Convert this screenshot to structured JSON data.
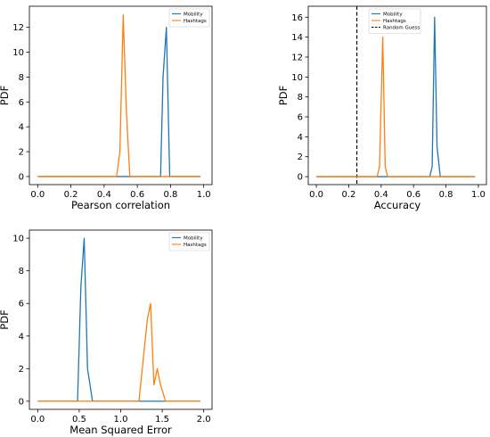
{
  "chart_data": [
    {
      "type": "line",
      "xlabel": "Pearson correlation",
      "ylabel": "PDF",
      "xlim": [
        -0.05,
        1.05
      ],
      "ylim": [
        -0.65,
        13.7
      ],
      "xticks": [
        0.0,
        0.2,
        0.4,
        0.6,
        0.8,
        1.0
      ],
      "xtick_labels": [
        "0.0",
        "0.2",
        "0.4",
        "0.6",
        "0.8",
        "1.0"
      ],
      "yticks": [
        0,
        2,
        4,
        6,
        8,
        10,
        12
      ],
      "ytick_labels": [
        "0",
        "2",
        "4",
        "6",
        "8",
        "10",
        "12"
      ],
      "legend_position": "top-right",
      "series": [
        {
          "name": "Mobility",
          "color": "#1f77b4",
          "x": [
            0.0,
            0.74,
            0.755,
            0.775,
            0.795,
            0.98
          ],
          "y": [
            0,
            0,
            8,
            12,
            0,
            0
          ]
        },
        {
          "name": "Hashtags",
          "color": "#ff7f0e",
          "x": [
            0.0,
            0.475,
            0.495,
            0.515,
            0.535,
            0.555,
            0.98
          ],
          "y": [
            0,
            0,
            2,
            13,
            5,
            0,
            0
          ]
        }
      ]
    },
    {
      "type": "line",
      "xlabel": "Accuracy",
      "ylabel": "PDF",
      "xlim": [
        -0.05,
        1.05
      ],
      "ylim": [
        -0.8,
        17.1
      ],
      "xticks": [
        0.0,
        0.2,
        0.4,
        0.6,
        0.8,
        1.0
      ],
      "xtick_labels": [
        "0.0",
        "0.2",
        "0.4",
        "0.6",
        "0.8",
        "1.0"
      ],
      "yticks": [
        0,
        2,
        4,
        6,
        8,
        10,
        12,
        14,
        16
      ],
      "ytick_labels": [
        "0",
        "2",
        "4",
        "6",
        "8",
        "10",
        "12",
        "14",
        "16"
      ],
      "legend_position": "top-center",
      "reference_line": {
        "x": 0.25,
        "label": "Random Guess",
        "style": "dashed",
        "color": "#000000"
      },
      "series": [
        {
          "name": "Mobility",
          "color": "#1f77b4",
          "x": [
            0.0,
            0.7,
            0.715,
            0.73,
            0.745,
            0.765,
            0.98
          ],
          "y": [
            0,
            0,
            1,
            16,
            3,
            0,
            0
          ]
        },
        {
          "name": "Hashtags",
          "color": "#ff7f0e",
          "x": [
            0.0,
            0.375,
            0.39,
            0.41,
            0.425,
            0.44,
            0.98
          ],
          "y": [
            0,
            0,
            1,
            14,
            1,
            0,
            0
          ]
        }
      ]
    },
    {
      "type": "line",
      "xlabel": "Mean Squared Error",
      "ylabel": "PDF",
      "xlim": [
        -0.1,
        2.1
      ],
      "ylim": [
        -0.5,
        10.5
      ],
      "xticks": [
        0.0,
        0.5,
        1.0,
        1.5,
        2.0
      ],
      "xtick_labels": [
        "0.0",
        "0.5",
        "1.0",
        "1.5",
        "2.0"
      ],
      "yticks": [
        0,
        2,
        4,
        6,
        8,
        10
      ],
      "ytick_labels": [
        "0",
        "2",
        "4",
        "6",
        "8",
        "10"
      ],
      "legend_position": "top-right",
      "series": [
        {
          "name": "Mobility",
          "color": "#1f77b4",
          "x": [
            0.0,
            0.48,
            0.52,
            0.56,
            0.6,
            0.66,
            1.96
          ],
          "y": [
            0,
            0,
            7,
            10,
            2,
            0,
            0
          ]
        },
        {
          "name": "Hashtags",
          "color": "#ff7f0e",
          "x": [
            0.0,
            1.22,
            1.28,
            1.32,
            1.36,
            1.4,
            1.44,
            1.48,
            1.54,
            1.96
          ],
          "y": [
            0,
            0,
            3,
            5,
            6,
            1,
            2,
            1,
            0,
            0
          ]
        }
      ]
    }
  ]
}
